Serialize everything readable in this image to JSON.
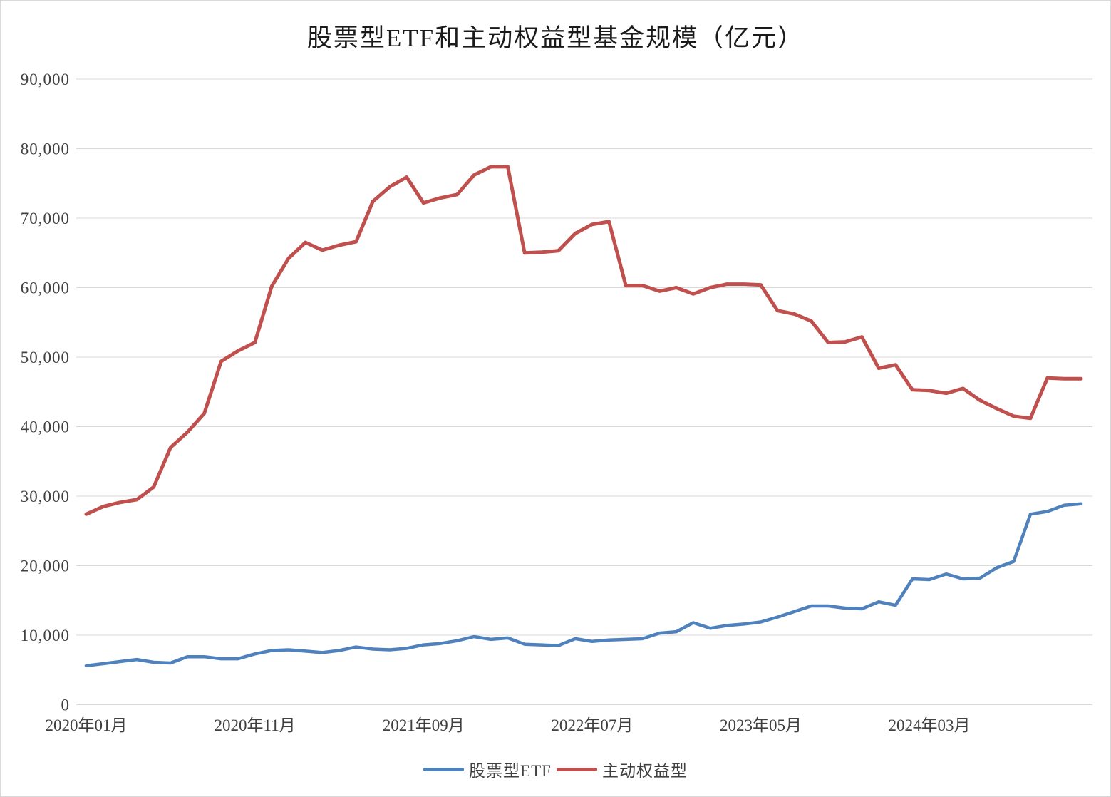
{
  "title": "股票型ETF和主动权益型基金规模（亿元）",
  "legend": {
    "items": [
      {
        "label": "股票型ETF",
        "color": "#4F81BD"
      },
      {
        "label": "主动权益型",
        "color": "#C0504D"
      }
    ]
  },
  "chart_data": {
    "type": "line",
    "title": "股票型ETF和主动权益型基金规模（亿元）",
    "ylabel": "",
    "xlabel": "",
    "ylim": [
      0,
      90000
    ],
    "ytick_step": 10000,
    "grid": true,
    "legend_position": "bottom",
    "y_tick_labels": [
      "0",
      "10,000",
      "20,000",
      "30,000",
      "40,000",
      "50,000",
      "60,000",
      "70,000",
      "80,000",
      "90,000"
    ],
    "x_tick_indices": [
      0,
      10,
      20,
      30,
      40,
      50
    ],
    "x_tick_labels": [
      "2020年01月",
      "2020年11月",
      "2021年09月",
      "2022年07月",
      "2023年05月",
      "2024年03月"
    ],
    "categories": [
      "2020年01月",
      "2020年02月",
      "2020年03月",
      "2020年04月",
      "2020年05月",
      "2020年06月",
      "2020年07月",
      "2020年08月",
      "2020年09月",
      "2020年10月",
      "2020年11月",
      "2020年12月",
      "2021年01月",
      "2021年02月",
      "2021年03月",
      "2021年04月",
      "2021年05月",
      "2021年06月",
      "2021年07月",
      "2021年08月",
      "2021年09月",
      "2021年10月",
      "2021年11月",
      "2021年12月",
      "2022年01月",
      "2022年02月",
      "2022年03月",
      "2022年04月",
      "2022年05月",
      "2022年06月",
      "2022年07月",
      "2022年08月",
      "2022年09月",
      "2022年10月",
      "2022年11月",
      "2022年12月",
      "2023年01月",
      "2023年02月",
      "2023年03月",
      "2023年04月",
      "2023年05月",
      "2023年06月",
      "2023年07月",
      "2023年08月",
      "2023年09月",
      "2023年10月",
      "2023年11月",
      "2023年12月",
      "2024年01月",
      "2024年02月",
      "2024年03月",
      "2024年04月",
      "2024年05月",
      "2024年06月",
      "2024年07月",
      "2024年08月",
      "2024年09月",
      "2024年10月",
      "2024年11月",
      "2024年12月"
    ],
    "series": [
      {
        "name": "股票型ETF",
        "color": "#4F81BD",
        "stroke_width": 4.5,
        "values": [
          5600,
          5900,
          6200,
          6500,
          6100,
          6000,
          6900,
          6900,
          6600,
          6600,
          7300,
          7800,
          7900,
          7700,
          7500,
          7800,
          8300,
          8000,
          7900,
          8100,
          8600,
          8800,
          9200,
          9800,
          9400,
          9600,
          8700,
          8600,
          8500,
          9500,
          9100,
          9300,
          9400,
          9500,
          10300,
          10500,
          11800,
          11000,
          11400,
          11600,
          11900,
          12600,
          13400,
          14200,
          14200,
          13900,
          13800,
          14800,
          14300,
          18100,
          18000,
          18800,
          18100,
          18200,
          19700,
          20600,
          27400,
          27800,
          28700,
          28900
        ]
      },
      {
        "name": "主动权益型",
        "color": "#C0504D",
        "stroke_width": 5,
        "values": [
          27400,
          28500,
          29100,
          29500,
          31300,
          37000,
          39200,
          41900,
          49400,
          50900,
          52100,
          60200,
          64200,
          66500,
          65400,
          66100,
          66600,
          72400,
          74500,
          75900,
          72200,
          72900,
          73400,
          76200,
          77400,
          77400,
          65000,
          65100,
          65300,
          67800,
          69100,
          69500,
          60300,
          60300,
          59500,
          60000,
          59100,
          60000,
          60500,
          60500,
          60400,
          56700,
          56200,
          55200,
          52100,
          52200,
          52900,
          48400,
          48900,
          45300,
          45200,
          44800,
          45500,
          43800,
          42600,
          41500,
          41200,
          47000,
          46900,
          46900
        ]
      }
    ]
  }
}
